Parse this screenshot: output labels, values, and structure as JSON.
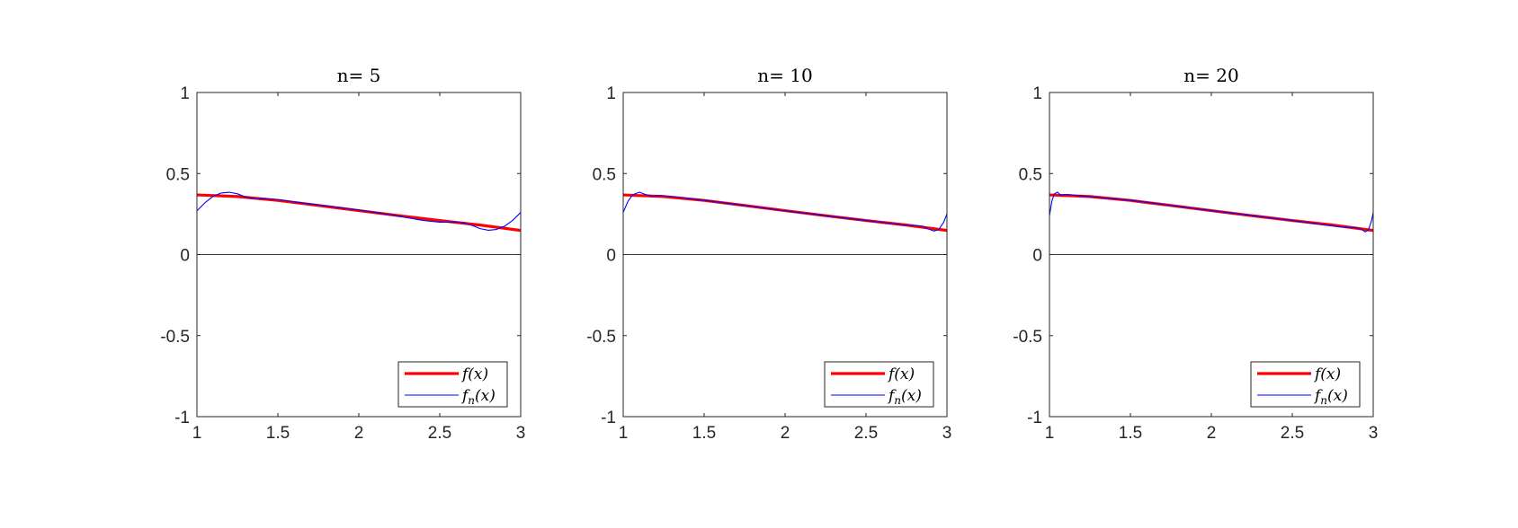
{
  "figure": {
    "background": "#ffffff",
    "axes_color": "#262626"
  },
  "chart_data": [
    {
      "type": "line",
      "title": "n= 5",
      "xlim": [
        1,
        3
      ],
      "ylim": [
        -1,
        1
      ],
      "xticks": [
        1,
        1.5,
        2,
        2.5,
        3
      ],
      "xtick_labels": [
        "1",
        "1.5",
        "2",
        "2.5",
        "3"
      ],
      "yticks": [
        -1,
        -0.5,
        0,
        0.5,
        1
      ],
      "ytick_labels": [
        "-1",
        "-0.5",
        "0",
        "0.5",
        "1"
      ],
      "zero_line": true,
      "grid": false,
      "legend": {
        "position": "bottom-right"
      },
      "series": [
        {
          "name": "f(x)",
          "color": "#ff0000",
          "x": [
            1,
            1.25,
            1.5,
            1.75,
            2,
            2.25,
            2.5,
            2.75,
            3
          ],
          "y": [
            0.368,
            0.358,
            0.334,
            0.303,
            0.271,
            0.24,
            0.21,
            0.182,
            0.149
          ]
        },
        {
          "name": "f_n(x)",
          "color": "#0000ff",
          "x": [
            1,
            1.05,
            1.1,
            1.15,
            1.2,
            1.25,
            1.3,
            1.35,
            1.4,
            1.5,
            1.6,
            1.8,
            2,
            2.2,
            2.4,
            2.5,
            2.6,
            2.65,
            2.7,
            2.75,
            2.8,
            2.85,
            2.9,
            2.95,
            3
          ],
          "y": [
            0.27,
            0.32,
            0.36,
            0.38,
            0.385,
            0.375,
            0.355,
            0.345,
            0.345,
            0.34,
            0.325,
            0.3,
            0.275,
            0.245,
            0.21,
            0.2,
            0.2,
            0.195,
            0.18,
            0.16,
            0.15,
            0.155,
            0.175,
            0.21,
            0.26
          ]
        }
      ]
    },
    {
      "type": "line",
      "title": "n= 10",
      "xlim": [
        1,
        3
      ],
      "ylim": [
        -1,
        1
      ],
      "xticks": [
        1,
        1.5,
        2,
        2.5,
        3
      ],
      "xtick_labels": [
        "1",
        "1.5",
        "2",
        "2.5",
        "3"
      ],
      "yticks": [
        -1,
        -0.5,
        0,
        0.5,
        1
      ],
      "ytick_labels": [
        "-1",
        "-0.5",
        "0",
        "0.5",
        "1"
      ],
      "zero_line": true,
      "grid": false,
      "legend": {
        "position": "bottom-right"
      },
      "series": [
        {
          "name": "f(x)",
          "color": "#ff0000",
          "x": [
            1,
            1.25,
            1.5,
            1.75,
            2,
            2.25,
            2.5,
            2.75,
            3
          ],
          "y": [
            0.368,
            0.358,
            0.334,
            0.303,
            0.271,
            0.24,
            0.21,
            0.182,
            0.149
          ]
        },
        {
          "name": "f_n(x)",
          "color": "#0000ff",
          "x": [
            1,
            1.03,
            1.06,
            1.1,
            1.14,
            1.18,
            1.22,
            1.3,
            1.5,
            1.75,
            2,
            2.25,
            2.5,
            2.75,
            2.8,
            2.85,
            2.88,
            2.92,
            2.95,
            2.98,
            3
          ],
          "y": [
            0.26,
            0.33,
            0.37,
            0.385,
            0.37,
            0.36,
            0.365,
            0.358,
            0.335,
            0.303,
            0.27,
            0.24,
            0.21,
            0.18,
            0.18,
            0.175,
            0.16,
            0.145,
            0.155,
            0.2,
            0.25
          ]
        }
      ]
    },
    {
      "type": "line",
      "title": "n= 20",
      "xlim": [
        1,
        3
      ],
      "ylim": [
        -1,
        1
      ],
      "xticks": [
        1,
        1.5,
        2,
        2.5,
        3
      ],
      "xtick_labels": [
        "1",
        "1.5",
        "2",
        "2.5",
        "3"
      ],
      "yticks": [
        -1,
        -0.5,
        0,
        0.5,
        1
      ],
      "ytick_labels": [
        "-1",
        "-0.5",
        "0",
        "0.5",
        "1"
      ],
      "zero_line": true,
      "grid": false,
      "legend": {
        "position": "bottom-right"
      },
      "series": [
        {
          "name": "f(x)",
          "color": "#ff0000",
          "x": [
            1,
            1.25,
            1.5,
            1.75,
            2,
            2.25,
            2.5,
            2.75,
            3
          ],
          "y": [
            0.368,
            0.358,
            0.334,
            0.303,
            0.271,
            0.24,
            0.21,
            0.182,
            0.149
          ]
        },
        {
          "name": "f_n(x)",
          "color": "#0000ff",
          "x": [
            1,
            1.015,
            1.03,
            1.05,
            1.07,
            1.09,
            1.12,
            1.2,
            1.5,
            2,
            2.5,
            2.8,
            2.9,
            2.93,
            2.95,
            2.97,
            2.99,
            3
          ],
          "y": [
            0.24,
            0.33,
            0.375,
            0.385,
            0.365,
            0.37,
            0.37,
            0.362,
            0.335,
            0.271,
            0.21,
            0.17,
            0.165,
            0.155,
            0.14,
            0.15,
            0.21,
            0.26
          ]
        }
      ]
    }
  ]
}
